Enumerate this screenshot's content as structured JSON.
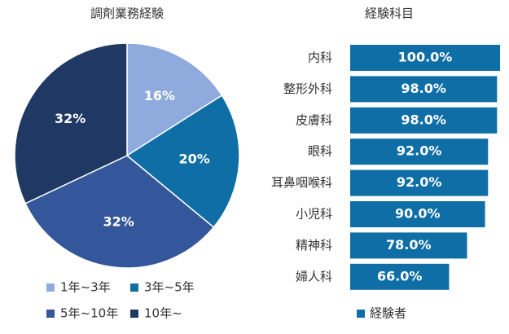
{
  "chart_data": [
    {
      "type": "pie",
      "title": "調剤業務経験",
      "categories": [
        "1年~3年",
        "3年~5年",
        "5年~10年",
        "10年~"
      ],
      "values": [
        16,
        20,
        32,
        32
      ],
      "value_labels": [
        "16%",
        "20%",
        "32%",
        "32%"
      ],
      "colors": [
        "#8faadc",
        "#0f6ea6",
        "#34569a",
        "#1f3864"
      ]
    },
    {
      "type": "hbar",
      "title": "経験科目",
      "categories": [
        "内科",
        "整形外科",
        "皮膚科",
        "眼科",
        "耳鼻咽喉科",
        "小児科",
        "精神科",
        "婦人科"
      ],
      "series": [
        {
          "name": "経験者",
          "color": "#0f6ea6",
          "values": [
            100,
            98,
            98,
            92,
            92,
            90,
            78,
            66
          ],
          "value_labels": [
            "100.0%",
            "98.0%",
            "98.0%",
            "92.0%",
            "92.0%",
            "90.0%",
            "78.0%",
            "66.0%"
          ]
        }
      ]
    }
  ]
}
